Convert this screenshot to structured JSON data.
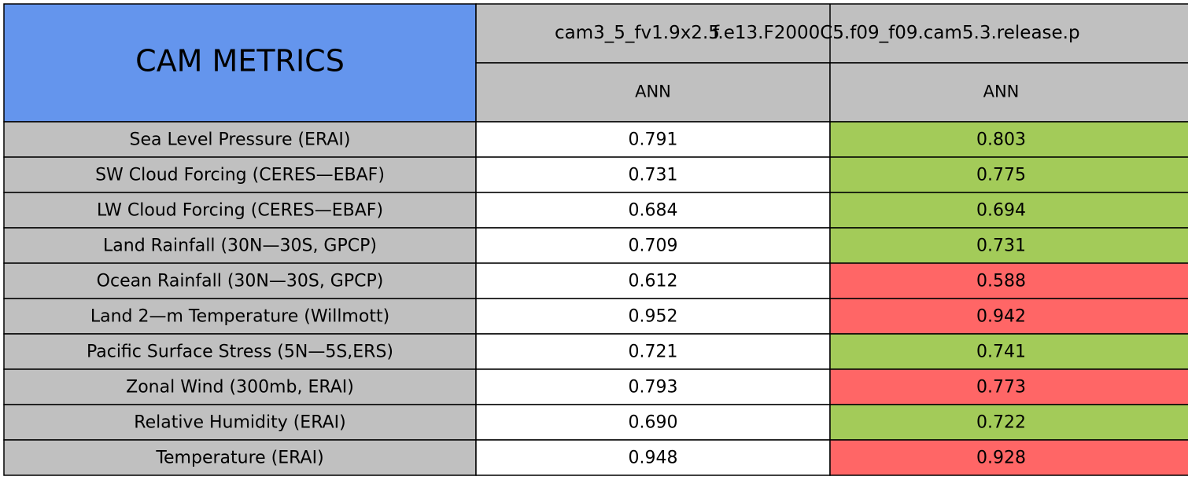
{
  "header": {
    "title": "CAM METRICS",
    "cases": [
      "cam3_5_fv1.9x2.5",
      "f.e13.F2000C5.f09_f09.cam5.3.release.p"
    ],
    "seasons": [
      "ANN",
      "ANN"
    ]
  },
  "table": {
    "rows": [
      {
        "metric": "Sea Level Pressure (ERAI)",
        "values": [
          "0.791",
          "0.803"
        ],
        "colors": [
          "#ffffff",
          "#a3cb59"
        ]
      },
      {
        "metric": "SW Cloud Forcing (CERES—EBAF)",
        "values": [
          "0.731",
          "0.775"
        ],
        "colors": [
          "#ffffff",
          "#a3cb59"
        ]
      },
      {
        "metric": "LW Cloud Forcing (CERES—EBAF)",
        "values": [
          "0.684",
          "0.694"
        ],
        "colors": [
          "#ffffff",
          "#a3cb59"
        ]
      },
      {
        "metric": "Land Rainfall (30N—30S, GPCP)",
        "values": [
          "0.709",
          "0.731"
        ],
        "colors": [
          "#ffffff",
          "#a3cb59"
        ]
      },
      {
        "metric": "Ocean Rainfall (30N—30S, GPCP)",
        "values": [
          "0.612",
          "0.588"
        ],
        "colors": [
          "#ffffff",
          "#ff6666"
        ]
      },
      {
        "metric": "Land 2—m Temperature (Willmott)",
        "values": [
          "0.952",
          "0.942"
        ],
        "colors": [
          "#ffffff",
          "#ff6666"
        ]
      },
      {
        "metric": "Pacific Surface Stress (5N—5S,ERS)",
        "values": [
          "0.721",
          "0.741"
        ],
        "colors": [
          "#ffffff",
          "#a3cb59"
        ]
      },
      {
        "metric": "Zonal Wind (300mb, ERAI)",
        "values": [
          "0.793",
          "0.773"
        ],
        "colors": [
          "#ffffff",
          "#ff6666"
        ]
      },
      {
        "metric": "Relative Humidity (ERAI)",
        "values": [
          "0.690",
          "0.722"
        ],
        "colors": [
          "#ffffff",
          "#a3cb59"
        ]
      },
      {
        "metric": "Temperature (ERAI)",
        "values": [
          "0.948",
          "0.928"
        ],
        "colors": [
          "#ffffff",
          "#ff6666"
        ]
      }
    ]
  }
}
